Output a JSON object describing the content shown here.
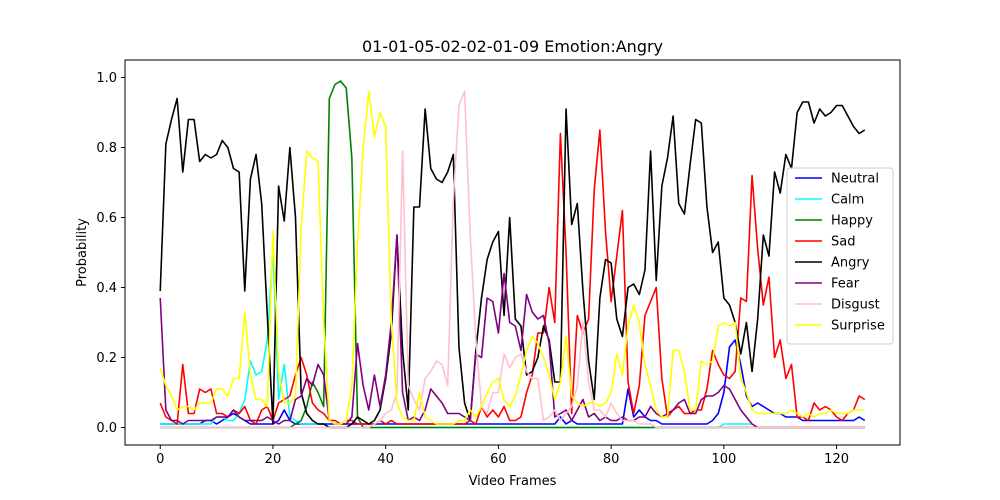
{
  "chart_data": {
    "type": "line",
    "title": "01-01-05-02-02-01-09 Emotion:Angry",
    "xlabel": "Video Frames",
    "ylabel": "Probability",
    "xlim": [
      -6.25,
      131.25
    ],
    "ylim": [
      -0.05,
      1.05
    ],
    "xticks": [
      0,
      20,
      40,
      60,
      80,
      100,
      120
    ],
    "yticks": [
      0.0,
      0.2,
      0.4,
      0.6,
      0.8,
      1.0
    ],
    "grid": false,
    "legend_position": "center-right",
    "series": [
      {
        "name": "Neutral",
        "color": "#0000ff",
        "values": [
          0.01,
          0.01,
          0.01,
          0.01,
          0.01,
          0.01,
          0.01,
          0.01,
          0.02,
          0.02,
          0.01,
          0.02,
          0.03,
          0.04,
          0.03,
          0.02,
          0.01,
          0.01,
          0.01,
          0.01,
          0.01,
          0.02,
          0.05,
          0.02,
          0.01,
          0.01,
          0.01,
          0.01,
          0.01,
          0.01,
          0.01,
          0.01,
          0.01,
          0.01,
          0.01,
          0.01,
          0.01,
          0.01,
          0.01,
          0.01,
          0.01,
          0.01,
          0.01,
          0.01,
          0.01,
          0.01,
          0.01,
          0.01,
          0.01,
          0.01,
          0.01,
          0.01,
          0.01,
          0.01,
          0.01,
          0.01,
          0.01,
          0.01,
          0.01,
          0.01,
          0.01,
          0.01,
          0.01,
          0.01,
          0.01,
          0.01,
          0.01,
          0.01,
          0.01,
          0.01,
          0.01,
          0.03,
          0.01,
          0.02,
          0.01,
          0.01,
          0.01,
          0.01,
          0.01,
          0.01,
          0.01,
          0.01,
          0.01,
          0.11,
          0.03,
          0.05,
          0.03,
          0.02,
          0.02,
          0.01,
          0.01,
          0.01,
          0.01,
          0.01,
          0.01,
          0.01,
          0.01,
          0.01,
          0.02,
          0.04,
          0.1,
          0.23,
          0.25,
          0.18,
          0.09,
          0.06,
          0.07,
          0.06,
          0.05,
          0.04,
          0.04,
          0.03,
          0.03,
          0.03,
          0.02,
          0.02,
          0.02,
          0.02,
          0.02,
          0.02,
          0.02,
          0.02,
          0.02,
          0.02,
          0.03,
          0.02
        ]
      },
      {
        "name": "Calm",
        "color": "#00ffff",
        "values": [
          0.01,
          0.01,
          0.01,
          0.01,
          0.01,
          0.01,
          0.01,
          0.01,
          0.01,
          0.01,
          0.03,
          0.03,
          0.02,
          0.02,
          0.04,
          0.08,
          0.19,
          0.15,
          0.16,
          0.25,
          0.51,
          0.08,
          0.18,
          0.03,
          0.02,
          0.01,
          0.01,
          0.01,
          0.01,
          0.01,
          0.0,
          0.0,
          0.0,
          0.0,
          0.0,
          0.0,
          0.0,
          0.0,
          0.0,
          0.0,
          0.0,
          0.0,
          0.0,
          0.0,
          0.0,
          0.0,
          0.0,
          0.0,
          0.0,
          0.0,
          0.0,
          0.0,
          0.0,
          0.0,
          0.0,
          0.0,
          0.0,
          0.0,
          0.0,
          0.0,
          0.0,
          0.0,
          0.0,
          0.0,
          0.0,
          0.0,
          0.0,
          0.0,
          0.0,
          0.0,
          0.0,
          0.0,
          0.0,
          0.0,
          0.0,
          0.0,
          0.0,
          0.0,
          0.0,
          0.0,
          0.0,
          0.0,
          0.0,
          0.0,
          0.0,
          0.0,
          0.0,
          0.0,
          0.0,
          0.0,
          0.0,
          0.0,
          0.0,
          0.0,
          0.0,
          0.0,
          0.0,
          0.0,
          0.0,
          0.0,
          0.01,
          0.01,
          0.01,
          0.01,
          0.01,
          0.01,
          0.0,
          0.0,
          0.0,
          0.0,
          0.0,
          0.0,
          0.0,
          0.0,
          0.0,
          0.0,
          0.0,
          0.0,
          0.0,
          0.0,
          0.0,
          0.0,
          0.0,
          0.0,
          0.0,
          0.0
        ]
      },
      {
        "name": "Happy",
        "color": "#008000",
        "values": [
          0.0,
          0.0,
          0.0,
          0.0,
          0.0,
          0.0,
          0.0,
          0.0,
          0.0,
          0.0,
          0.0,
          0.0,
          0.0,
          0.0,
          0.0,
          0.0,
          0.0,
          0.0,
          0.0,
          0.0,
          0.0,
          0.0,
          0.0,
          0.0,
          0.01,
          0.02,
          0.06,
          0.13,
          0.1,
          0.06,
          0.94,
          0.98,
          0.99,
          0.97,
          0.77,
          0.03,
          0.0,
          0.0,
          0.0,
          0.0,
          0.0,
          0.0,
          0.0,
          0.0,
          0.0,
          0.0,
          0.0,
          0.0,
          0.0,
          0.0,
          0.0,
          0.0,
          0.0,
          0.0,
          0.0,
          0.0,
          0.0,
          0.0,
          0.0,
          0.0,
          0.0,
          0.0,
          0.0,
          0.0,
          0.0,
          0.0,
          0.0,
          0.0,
          0.0,
          0.0,
          0.0,
          0.0,
          0.0,
          0.0,
          0.0,
          0.0,
          0.0,
          0.0,
          0.0,
          0.0,
          0.0,
          0.0,
          0.0,
          0.0,
          0.0,
          0.0,
          0.0,
          0.0,
          0.0,
          0.0,
          0.0,
          0.0,
          0.0,
          0.0,
          0.0,
          0.0,
          0.0,
          0.0,
          0.0,
          0.0,
          0.0,
          0.0,
          0.0,
          0.0,
          0.0,
          0.0,
          0.0,
          0.0,
          0.0,
          0.0,
          0.0,
          0.0,
          0.0,
          0.0,
          0.0,
          0.0,
          0.0,
          0.0,
          0.0,
          0.0,
          0.0,
          0.0,
          0.0,
          0.0,
          0.0,
          0.0
        ]
      },
      {
        "name": "Sad",
        "color": "#ff0000",
        "values": [
          0.07,
          0.03,
          0.02,
          0.01,
          0.18,
          0.04,
          0.04,
          0.11,
          0.1,
          0.11,
          0.04,
          0.04,
          0.03,
          0.05,
          0.04,
          0.06,
          0.02,
          0.01,
          0.05,
          0.06,
          0.02,
          0.07,
          0.08,
          0.09,
          0.15,
          0.2,
          0.15,
          0.07,
          0.05,
          0.04,
          0.02,
          0.02,
          0.01,
          0.02,
          0.02,
          0.01,
          0.01,
          0.01,
          0.01,
          0.02,
          0.01,
          0.02,
          0.01,
          0.01,
          0.01,
          0.01,
          0.01,
          0.01,
          0.01,
          0.01,
          0.01,
          0.01,
          0.01,
          0.01,
          0.01,
          0.02,
          0.01,
          0.06,
          0.03,
          0.05,
          0.03,
          0.06,
          0.02,
          0.02,
          0.03,
          0.1,
          0.15,
          0.27,
          0.27,
          0.4,
          0.3,
          0.84,
          0.5,
          0.04,
          0.32,
          0.27,
          0.31,
          0.68,
          0.85,
          0.56,
          0.36,
          0.49,
          0.62,
          0.13,
          0.04,
          0.12,
          0.32,
          0.36,
          0.4,
          0.14,
          0.03,
          0.05,
          0.06,
          0.04,
          0.04,
          0.05,
          0.05,
          0.11,
          0.22,
          0.18,
          0.15,
          0.14,
          0.16,
          0.37,
          0.36,
          0.72,
          0.51,
          0.35,
          0.43,
          0.2,
          0.25,
          0.14,
          0.18,
          0.03,
          0.03,
          0.02,
          0.07,
          0.05,
          0.06,
          0.05,
          0.03,
          0.02,
          0.04,
          0.05,
          0.09,
          0.08
        ]
      },
      {
        "name": "Angry",
        "color": "#000000",
        "values": [
          0.39,
          0.81,
          0.88,
          0.94,
          0.73,
          0.88,
          0.88,
          0.76,
          0.78,
          0.77,
          0.78,
          0.82,
          0.8,
          0.74,
          0.73,
          0.39,
          0.71,
          0.78,
          0.64,
          0.32,
          0.01,
          0.69,
          0.59,
          0.8,
          0.6,
          0.1,
          0.04,
          0.02,
          0.01,
          0.01,
          0.0,
          0.0,
          0.0,
          0.0,
          0.01,
          0.03,
          0.02,
          0.01,
          0.02,
          0.05,
          0.14,
          0.27,
          0.55,
          0.22,
          0.05,
          0.63,
          0.63,
          0.91,
          0.74,
          0.71,
          0.7,
          0.73,
          0.78,
          0.23,
          0.07,
          0.02,
          0.22,
          0.37,
          0.48,
          0.53,
          0.56,
          0.32,
          0.6,
          0.31,
          0.29,
          0.15,
          0.16,
          0.2,
          0.29,
          0.25,
          0.13,
          0.13,
          0.91,
          0.58,
          0.64,
          0.39,
          0.19,
          0.08,
          0.37,
          0.48,
          0.47,
          0.31,
          0.26,
          0.4,
          0.41,
          0.38,
          0.45,
          0.79,
          0.42,
          0.69,
          0.77,
          0.89,
          0.64,
          0.61,
          0.75,
          0.88,
          0.87,
          0.63,
          0.5,
          0.53,
          0.37,
          0.35,
          0.3,
          0.21,
          0.3,
          0.16,
          0.31,
          0.55,
          0.49,
          0.73,
          0.67,
          0.78,
          0.74,
          0.9,
          0.93,
          0.93,
          0.87,
          0.91,
          0.89,
          0.9,
          0.92,
          0.92,
          0.89,
          0.86,
          0.84,
          0.85
        ]
      },
      {
        "name": "Fear",
        "color": "#800080",
        "values": [
          0.37,
          0.05,
          0.02,
          0.02,
          0.01,
          0.02,
          0.02,
          0.02,
          0.02,
          0.02,
          0.03,
          0.03,
          0.03,
          0.05,
          0.03,
          0.02,
          0.02,
          0.02,
          0.02,
          0.03,
          0.02,
          0.01,
          0.02,
          0.02,
          0.08,
          0.09,
          0.14,
          0.12,
          0.18,
          0.15,
          0.02,
          0.01,
          0.01,
          0.01,
          0.03,
          0.24,
          0.12,
          0.05,
          0.15,
          0.06,
          0.15,
          0.3,
          0.55,
          0.1,
          0.02,
          0.03,
          0.02,
          0.05,
          0.11,
          0.09,
          0.07,
          0.04,
          0.04,
          0.04,
          0.03,
          0.02,
          0.21,
          0.2,
          0.37,
          0.36,
          0.27,
          0.44,
          0.3,
          0.29,
          0.22,
          0.38,
          0.33,
          0.31,
          0.32,
          0.24,
          0.03,
          0.04,
          0.05,
          0.02,
          0.05,
          0.08,
          0.03,
          0.04,
          0.02,
          0.03,
          0.02,
          0.02,
          0.03,
          0.02,
          0.02,
          0.03,
          0.03,
          0.06,
          0.04,
          0.03,
          0.04,
          0.05,
          0.07,
          0.08,
          0.04,
          0.04,
          0.08,
          0.09,
          0.09,
          0.1,
          0.12,
          0.11,
          0.08,
          0.05,
          0.03,
          0.01,
          0.0,
          0.0,
          0.0,
          0.0,
          0.0,
          0.0,
          0.0,
          0.0,
          0.0,
          0.0,
          0.0,
          0.0,
          0.0,
          0.0,
          0.0,
          0.0,
          0.0,
          0.0,
          0.0,
          0.0
        ]
      },
      {
        "name": "Disgust",
        "color": "#ffc0cb",
        "values": [
          0.0,
          0.0,
          0.0,
          0.0,
          0.0,
          0.0,
          0.0,
          0.0,
          0.0,
          0.0,
          0.0,
          0.0,
          0.0,
          0.0,
          0.0,
          0.0,
          0.0,
          0.0,
          0.0,
          0.0,
          0.0,
          0.0,
          0.0,
          0.0,
          0.0,
          0.0,
          0.0,
          0.0,
          0.0,
          0.0,
          0.0,
          0.0,
          0.0,
          0.0,
          0.0,
          0.0,
          0.0,
          0.0,
          0.01,
          0.02,
          0.04,
          0.05,
          0.1,
          0.79,
          0.12,
          0.08,
          0.05,
          0.14,
          0.16,
          0.19,
          0.18,
          0.12,
          0.65,
          0.92,
          0.96,
          0.55,
          0.25,
          0.06,
          0.04,
          0.1,
          0.1,
          0.21,
          0.17,
          0.2,
          0.21,
          0.16,
          0.14,
          0.14,
          0.02,
          0.03,
          0.05,
          0.02,
          0.04,
          0.06,
          0.12,
          0.3,
          0.13,
          0.05,
          0.05,
          0.03,
          0.07,
          0.04,
          0.02,
          0.02,
          0.02,
          0.01,
          0.01,
          0.01,
          0.0,
          0.0,
          0.0,
          0.0,
          0.0,
          0.0,
          0.0,
          0.0,
          0.0,
          0.0,
          0.0,
          0.0,
          0.0,
          0.0,
          0.0,
          0.0,
          0.0,
          0.0,
          0.0,
          0.0,
          0.0,
          0.0,
          0.0,
          0.0,
          0.0,
          0.0,
          0.0,
          0.0,
          0.0,
          0.0,
          0.0,
          0.0,
          0.0,
          0.0,
          0.0,
          0.0,
          0.0,
          0.0
        ]
      },
      {
        "name": "Surprise",
        "color": "#ffff00",
        "values": [
          0.17,
          0.12,
          0.09,
          0.05,
          0.06,
          0.06,
          0.05,
          0.07,
          0.07,
          0.07,
          0.11,
          0.11,
          0.09,
          0.14,
          0.14,
          0.33,
          0.15,
          0.08,
          0.08,
          0.06,
          0.56,
          0.16,
          0.07,
          0.07,
          0.09,
          0.57,
          0.79,
          0.77,
          0.76,
          0.3,
          0.02,
          0.01,
          0.01,
          0.02,
          0.12,
          0.52,
          0.8,
          0.96,
          0.83,
          0.9,
          0.86,
          0.3,
          0.07,
          0.03,
          0.02,
          0.02,
          0.1,
          0.03,
          0.02,
          0.01,
          0.01,
          0.01,
          0.01,
          0.02,
          0.02,
          0.05,
          0.03,
          0.06,
          0.1,
          0.13,
          0.14,
          0.08,
          0.06,
          0.09,
          0.15,
          0.22,
          0.26,
          0.24,
          0.2,
          0.15,
          0.08,
          0.13,
          0.26,
          0.09,
          0.07,
          0.06,
          0.07,
          0.07,
          0.06,
          0.07,
          0.1,
          0.21,
          0.15,
          0.29,
          0.35,
          0.3,
          0.18,
          0.12,
          0.05,
          0.03,
          0.03,
          0.22,
          0.22,
          0.16,
          0.05,
          0.05,
          0.19,
          0.18,
          0.19,
          0.29,
          0.3,
          0.29,
          0.3,
          0.14,
          0.1,
          0.05,
          0.04,
          0.04,
          0.04,
          0.04,
          0.04,
          0.04,
          0.05,
          0.04,
          0.03,
          0.04,
          0.03,
          0.04,
          0.04,
          0.05,
          0.04,
          0.04,
          0.04,
          0.05,
          0.05,
          0.05
        ]
      }
    ]
  }
}
